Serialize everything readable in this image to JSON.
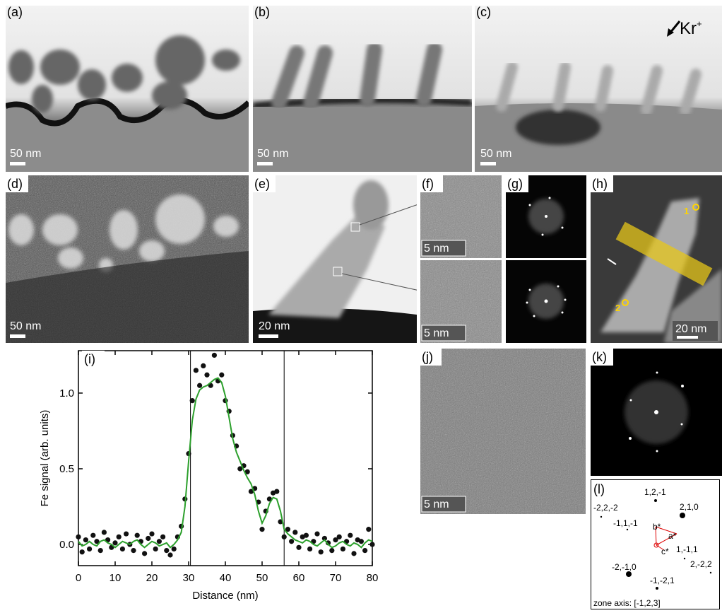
{
  "panels": {
    "a": {
      "label": "(a)",
      "scale_bar": "50 nm"
    },
    "b": {
      "label": "(b)",
      "scale_bar": "50 nm"
    },
    "c": {
      "label": "(c)",
      "scale_bar": "50 nm",
      "annotation": {
        "text": "Kr",
        "superscript": "+"
      }
    },
    "d": {
      "label": "(d)",
      "scale_bar": "50 nm"
    },
    "e": {
      "label": "(e)",
      "scale_bar": "20 nm"
    },
    "f": {
      "label": "(f)",
      "scale_bars": [
        "5 nm",
        "5 nm"
      ]
    },
    "g": {
      "label": "(g)"
    },
    "h": {
      "label": "(h)",
      "scale_bar": "20 nm",
      "markers": [
        "1",
        "2"
      ]
    },
    "j": {
      "label": "(j)",
      "scale_bar": "5 nm"
    },
    "k": {
      "label": "(k)"
    },
    "l": {
      "label": "(l)",
      "indices": [
        "1,2,-1",
        "-2,2,-2",
        "2,1,0",
        "-1,1,-1",
        "1,-1,1",
        "2,-2,2",
        "-2,-1,0",
        "-1,-2,1"
      ],
      "vectors": [
        "a*",
        "b*",
        "c*"
      ],
      "zone_axis": "zone axis: [-1,2,3]"
    }
  },
  "chart_data": {
    "type": "scatter",
    "panel_label": "(i)",
    "x_label": "Distance (nm)",
    "y_label": "Fe signal (arb. units)",
    "xlim": [
      0,
      80
    ],
    "ylim": [
      -0.14,
      1.28
    ],
    "xticks": [
      0,
      10,
      20,
      30,
      40,
      50,
      60,
      70,
      80
    ],
    "yticks": [
      {
        "value": 0,
        "label": "0.0"
      },
      0.5,
      {
        "value": 1,
        "label": "1.0"
      }
    ],
    "vlines": [
      30.5,
      56
    ],
    "x": [
      0,
      1,
      2,
      3,
      4,
      5,
      6,
      7,
      8,
      9,
      10,
      11,
      12,
      13,
      14,
      15,
      16,
      17,
      18,
      19,
      20,
      21,
      22,
      23,
      24,
      25,
      26,
      27,
      28,
      29,
      30,
      31,
      32,
      33,
      34,
      35,
      36,
      37,
      38,
      39,
      40,
      41,
      42,
      43,
      44,
      45,
      46,
      47,
      48,
      49,
      50,
      51,
      52,
      53,
      54,
      55,
      56,
      57,
      58,
      59,
      60,
      61,
      62,
      63,
      64,
      65,
      66,
      67,
      68,
      69,
      70,
      71,
      72,
      73,
      74,
      75,
      76,
      77,
      78,
      79,
      80
    ],
    "series": [
      {
        "type": "scatter",
        "color": "#111111",
        "values": [
          0.05,
          -0.05,
          0.03,
          -0.03,
          0.06,
          0.02,
          -0.04,
          0.08,
          0.03,
          -0.02,
          0.01,
          0.05,
          -0.03,
          0.07,
          0.0,
          -0.04,
          0.06,
          0.02,
          -0.06,
          0.04,
          0.07,
          -0.03,
          0.02,
          0.05,
          -0.04,
          -0.07,
          -0.03,
          0.05,
          0.12,
          0.3,
          0.6,
          0.95,
          1.15,
          1.05,
          1.18,
          1.12,
          1.05,
          1.25,
          1.08,
          1.12,
          0.95,
          0.88,
          0.72,
          0.65,
          0.5,
          0.52,
          0.48,
          0.35,
          0.37,
          0.28,
          0.1,
          0.22,
          0.3,
          0.34,
          0.35,
          0.15,
          0.05,
          0.1,
          0.02,
          0.08,
          -0.02,
          0.05,
          0.06,
          -0.03,
          0.02,
          0.07,
          -0.05,
          0.04,
          0.01,
          -0.04,
          0.03,
          0.05,
          -0.03,
          0.02,
          0.06,
          -0.06,
          0.03,
          0.02,
          -0.04,
          0.1,
          0.0
        ]
      },
      {
        "type": "line",
        "color": "#2ca02c",
        "values": [
          0.02,
          -0.01,
          0.0,
          0.02,
          0.0,
          -0.01,
          0.02,
          0.03,
          0.01,
          0.0,
          -0.02,
          0.0,
          0.02,
          0.01,
          0.0,
          0.02,
          0.03,
          0.0,
          -0.02,
          0.0,
          0.02,
          0.01,
          -0.01,
          0.0,
          0.01,
          -0.02,
          0.0,
          0.03,
          0.08,
          0.25,
          0.55,
          0.82,
          0.96,
          1.02,
          1.04,
          1.05,
          1.07,
          1.09,
          1.1,
          1.07,
          0.98,
          0.84,
          0.7,
          0.61,
          0.55,
          0.49,
          0.44,
          0.4,
          0.33,
          0.22,
          0.14,
          0.19,
          0.27,
          0.31,
          0.3,
          0.22,
          0.1,
          0.07,
          0.05,
          0.03,
          0.02,
          0.01,
          0.03,
          0.02,
          0.0,
          -0.01,
          0.01,
          0.03,
          0.0,
          -0.02,
          -0.01,
          0.01,
          0.02,
          0.0,
          -0.01,
          0.01,
          0.0,
          -0.02,
          0.01,
          0.03,
          0.02
        ]
      }
    ]
  }
}
